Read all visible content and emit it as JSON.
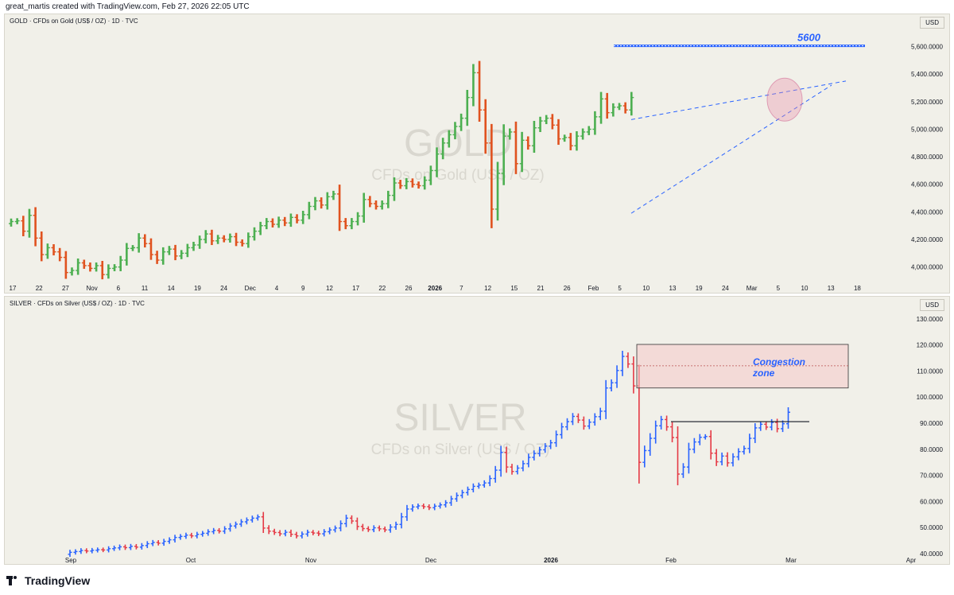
{
  "header": {
    "caption": "great_martis created with TradingView.com, Feb 27, 2026 22:05 UTC"
  },
  "footer": {
    "logo_text": "TradingView"
  },
  "colors": {
    "panel_bg": "#f1f0e9",
    "up_green": "#4caf50",
    "down_orange": "#e0521f",
    "up_blue": "#2962ff",
    "down_red": "#e53945",
    "annotation_blue": "#2962ff",
    "zone_fill": "#f4c9c9"
  },
  "chart_data": [
    {
      "type": "ohlc",
      "symbol_line": "GOLD · CFDs on Gold (US$ / OZ) · 1D · TVC",
      "currency": "USD",
      "watermark_title": "GOLD",
      "watermark_subtitle": "CFDs on Gold (US$ / OZ)",
      "x_ticks": [
        "17",
        "22",
        "27",
        "Nov",
        "6",
        "11",
        "14",
        "19",
        "24",
        "Dec",
        "4",
        "9",
        "12",
        "17",
        "22",
        "26",
        "2026",
        "7",
        "12",
        "15",
        "21",
        "26",
        "Feb",
        "5",
        "10",
        "13",
        "19",
        "24",
        "Mar",
        "5",
        "10",
        "13",
        "18"
      ],
      "x_tick_bold": "2026",
      "y_ticks": [
        "4,000.0000",
        "4,200.0000",
        "4,400.0000",
        "4,600.0000",
        "4,800.0000",
        "5,000.0000",
        "5,200.0000",
        "5,400.0000",
        "5,600.0000"
      ],
      "y_range": [
        3900,
        5730
      ],
      "bar_colors": {
        "up": "#4caf50",
        "down": "#e0521f"
      },
      "closes": [
        4330,
        4335,
        4260,
        4375,
        4210,
        4090,
        4140,
        4110,
        4070,
        3960,
        3975,
        4030,
        4010,
        3990,
        4010,
        3945,
        3990,
        4000,
        4050,
        4135,
        4140,
        4210,
        4170,
        4090,
        4050,
        4110,
        4130,
        4080,
        4100,
        4140,
        4160,
        4200,
        4240,
        4190,
        4210,
        4200,
        4220,
        4180,
        4170,
        4220,
        4260,
        4300,
        4330,
        4310,
        4340,
        4320,
        4360,
        4340,
        4380,
        4440,
        4480,
        4450,
        4510,
        4530,
        4330,
        4300,
        4330,
        4370,
        4490,
        4460,
        4440,
        4460,
        4520,
        4610,
        4590,
        4620,
        4600,
        4590,
        4630,
        4700,
        4820,
        4900,
        4960,
        5020,
        5080,
        5230,
        5410,
        5140,
        4900,
        4420,
        4680,
        4950,
        4980,
        4750,
        4920,
        4880,
        5010,
        5060,
        5080,
        5030,
        4930,
        4940,
        4880,
        4950,
        4980,
        5000,
        5090,
        5220,
        5120,
        5160,
        5170,
        5140,
        5230
      ],
      "annotation_level": "5600",
      "annotation_level_value": 5605,
      "wedge_upper": [
        [
          409.0,
          5070
        ],
        [
          535.0,
          5350
        ]
      ],
      "wedge_lower": [
        [
          409.0,
          4390
        ],
        [
          540.0,
          5320
        ]
      ]
    },
    {
      "type": "ohlc",
      "symbol_line": "SILVER · CFDs on Silver (US$ / OZ) · 1D · TVC",
      "currency": "USD",
      "watermark_title": "SILVER",
      "watermark_subtitle": "CFDs on Silver (US$ / OZ)",
      "x_ticks": [
        "Sep",
        "Oct",
        "Nov",
        "Dec",
        "2026",
        "Feb",
        "Mar",
        "Apr"
      ],
      "x_tick_bold": "2026",
      "y_ticks": [
        "40.0000",
        "50.0000",
        "60.0000",
        "70.0000",
        "80.0000",
        "90.0000",
        "100.0000",
        "110.0000",
        "120.0000",
        "130.0000"
      ],
      "y_range": [
        40,
        133
      ],
      "bar_colors": {
        "up": "#2962ff",
        "down": "#e53945"
      },
      "closes": [
        40.5,
        40.8,
        41.2,
        41.0,
        41.3,
        41.5,
        41.4,
        41.9,
        42.2,
        42.6,
        42.3,
        42.8,
        42.5,
        43.1,
        43.8,
        44.3,
        44.0,
        44.7,
        45.3,
        46.2,
        46.6,
        47.1,
        46.8,
        47.4,
        47.8,
        48.4,
        48.9,
        48.6,
        49.5,
        50.6,
        51.3,
        52.2,
        52.9,
        53.6,
        54.1,
        49.8,
        48.6,
        48.1,
        47.6,
        48.2,
        47.4,
        46.8,
        47.5,
        48.2,
        47.9,
        47.6,
        48.4,
        49.1,
        49.8,
        51.5,
        53.6,
        52.5,
        50.4,
        49.6,
        49.2,
        49.9,
        49.5,
        49.1,
        50.2,
        51.2,
        54.1,
        57.1,
        57.9,
        58.3,
        58.0,
        57.6,
        58.2,
        58.7,
        59.5,
        61.0,
        62.3,
        63.4,
        64.6,
        65.8,
        66.3,
        67.1,
        68.8,
        72.0,
        78.8,
        73.2,
        71.5,
        72.8,
        74.5,
        76.9,
        78.4,
        79.8,
        81.2,
        82.5,
        85.6,
        88.6,
        90.6,
        92.6,
        91.2,
        88.9,
        90.4,
        92.5,
        94.6,
        103.5,
        105.5,
        110.2,
        115.6,
        112.7,
        104.3,
        75.0,
        79.5,
        84.2,
        89.0,
        91.4,
        88.6,
        84.5,
        70.5,
        73.2,
        80.0,
        82.8,
        84.6,
        84.9,
        78.5,
        75.2,
        77.4,
        74.8,
        77.1,
        79.1,
        80.3,
        84.2,
        88.2,
        89.6,
        88.5,
        90.3,
        87.9,
        89.8,
        94.2
      ],
      "congestion_label": "Congestion zone",
      "zone_range": [
        103.5,
        120.2
      ],
      "zone_midline": 112.0,
      "resistance_level": 90.6
    }
  ]
}
